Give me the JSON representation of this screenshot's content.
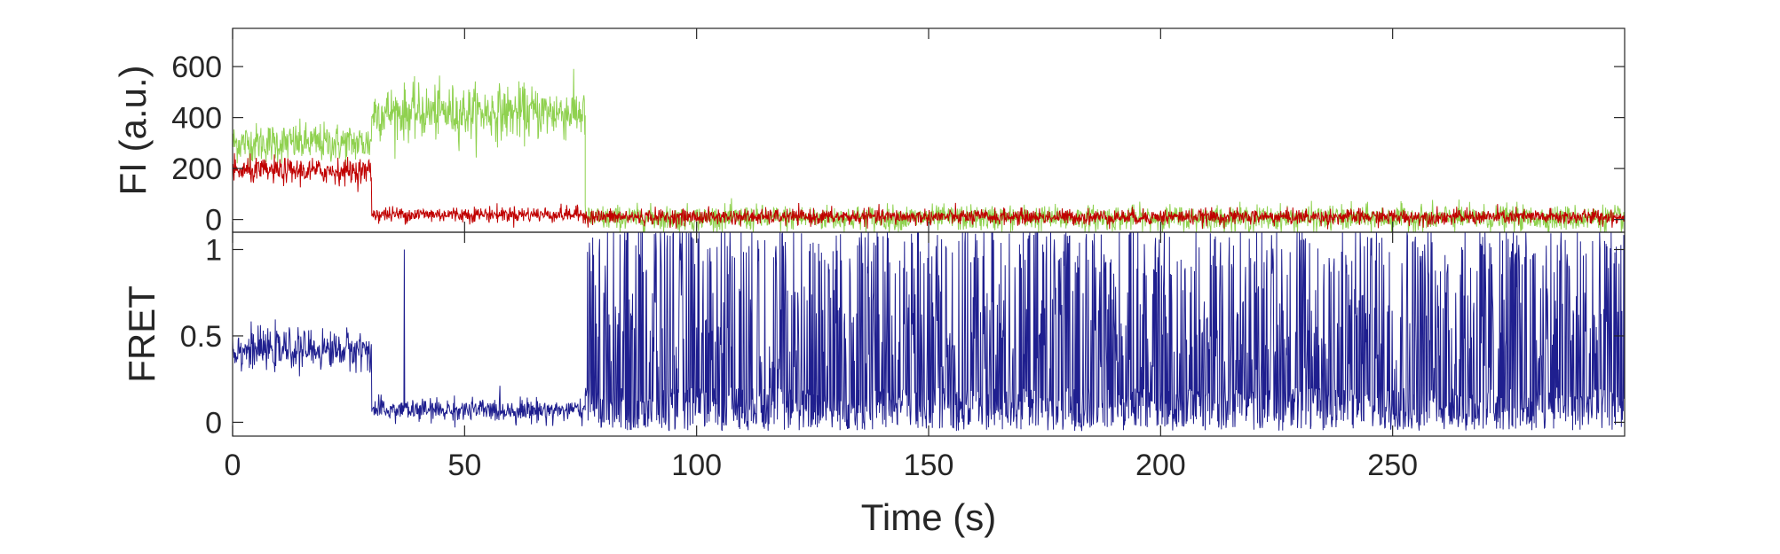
{
  "chart_data": [
    {
      "type": "line",
      "ylabel": "FI (a.u.)",
      "xlim": [
        0,
        300
      ],
      "ylim": [
        -50,
        750
      ],
      "yticks": [
        0,
        200,
        400,
        600
      ],
      "ytick_labels": [
        "0",
        "200",
        "400",
        "600"
      ],
      "xticks": [
        0,
        50,
        100,
        150,
        200,
        250
      ],
      "show_xtick_labels": false,
      "grid": false,
      "series": [
        {
          "color": "#8fd14f",
          "segments": [
            {
              "x_start": 0,
              "x_end": 30,
              "mean": 300,
              "noise": 70
            },
            {
              "x_start": 30,
              "x_end": 76,
              "mean": 420,
              "noise": 95
            },
            {
              "x_start": 76,
              "x_end": 300,
              "mean": 5,
              "noise": 45
            }
          ]
        },
        {
          "color": "#c00000",
          "segments": [
            {
              "x_start": 0,
              "x_end": 30,
              "mean": 190,
              "noise": 45
            },
            {
              "x_start": 30,
              "x_end": 76,
              "mean": 20,
              "noise": 28
            },
            {
              "x_start": 76,
              "x_end": 300,
              "mean": 10,
              "noise": 28
            }
          ]
        }
      ]
    },
    {
      "type": "line",
      "ylabel": "FRET",
      "xlabel": "Time (s)",
      "xlim": [
        0,
        300
      ],
      "ylim": [
        -0.08,
        1.1
      ],
      "yticks": [
        0,
        0.5,
        1
      ],
      "ytick_labels": [
        "0",
        "0.5",
        "1"
      ],
      "xticks": [
        0,
        50,
        100,
        150,
        200,
        250
      ],
      "xtick_labels": [
        "0",
        "50",
        "100",
        "150",
        "200",
        "250"
      ],
      "grid": false,
      "series": [
        {
          "color": "#1f1f8f",
          "segments": [
            {
              "x_start": 0,
              "x_end": 30,
              "mean": 0.42,
              "noise": 0.1
            },
            {
              "x_start": 30,
              "x_end": 76,
              "mean": 0.07,
              "noise": 0.06
            },
            {
              "x_start": 76,
              "x_end": 300,
              "mean": 0.5,
              "noise": 0.6
            }
          ],
          "spikes": [
            {
              "x": 37,
              "y": 1.0
            }
          ]
        }
      ]
    }
  ]
}
